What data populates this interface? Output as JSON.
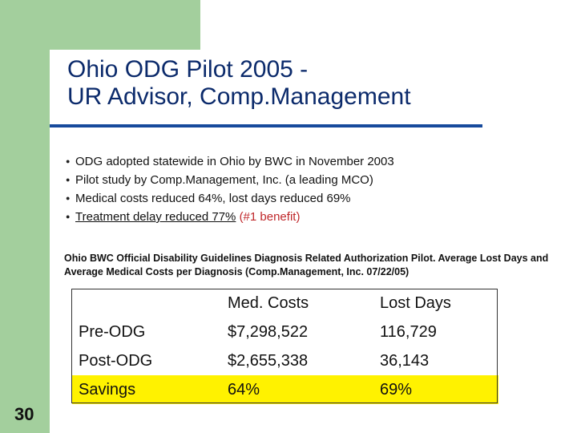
{
  "slide": {
    "title_line1": "Ohio ODG Pilot 2005 -",
    "title_line2": "UR Advisor, Comp.Management",
    "number": "30"
  },
  "bullets": [
    "ODG adopted statewide in Ohio by BWC in November 2003",
    "Pilot study by Comp.Management, Inc. (a leading MCO)",
    "Medical costs reduced 64%, lost days reduced 69%"
  ],
  "bullet4": {
    "underlined": "Treatment delay reduced 77%",
    "highlight": "(#1 benefit)"
  },
  "caption": "Ohio BWC Official Disability Guidelines Diagnosis Related Authorization Pilot. Average Lost Days and Average Medical Costs per Diagnosis (Comp.Management, Inc. 07/22/05)",
  "table": {
    "headers": [
      "",
      "Med. Costs",
      "Lost Days"
    ],
    "rows": [
      [
        "Pre-ODG",
        "$7,298,522",
        "116,729"
      ],
      [
        "Post-ODG",
        "$2,655,338",
        "36,143"
      ],
      [
        "Savings",
        "64%",
        "69%"
      ]
    ]
  },
  "colors": {
    "accent_green": "#a3cf9d",
    "title_blue": "#0b2a6b",
    "rule_blue": "#174a9c",
    "highlight_red": "#c0282b",
    "savings_yellow": "#fff200"
  }
}
